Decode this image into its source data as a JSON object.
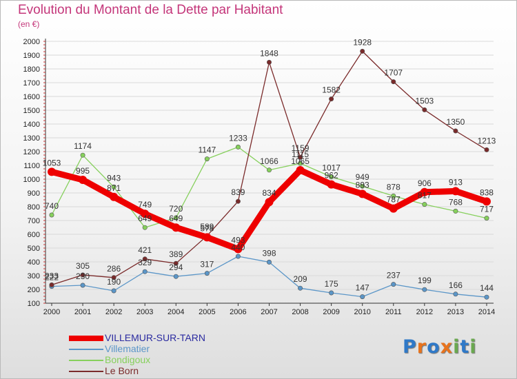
{
  "header": {
    "title": "Evolution du Montant de la Dette par Habitant",
    "subtitle": "(en €)"
  },
  "colors": {
    "title": "#c4367a",
    "axis": "#333333",
    "grid": "#d9d9d9"
  },
  "logo": {
    "text": "Proxiti",
    "letters": [
      {
        "ch": "P",
        "color": "#2f79c8"
      },
      {
        "ch": "r",
        "color": "#e8731d"
      },
      {
        "ch": "o",
        "color": "#2f79c8"
      },
      {
        "ch": "x",
        "color": "#e8731d"
      },
      {
        "ch": "i",
        "color": "#6aa84f"
      },
      {
        "ch": "t",
        "color": "#2f79c8"
      },
      {
        "ch": "i",
        "color": "#6aa84f"
      }
    ]
  },
  "chart_data": {
    "type": "line",
    "x": [
      "2000",
      "2001",
      "2002",
      "2003",
      "2004",
      "2005",
      "2006",
      "2007",
      "2008",
      "2009",
      "2010",
      "2011",
      "2012",
      "2013",
      "2014"
    ],
    "ylim": [
      100,
      2000
    ],
    "yticks": [
      100,
      200,
      300,
      400,
      500,
      600,
      700,
      800,
      900,
      1000,
      1100,
      1200,
      1300,
      1400,
      1500,
      1600,
      1700,
      1800,
      1900,
      2000
    ],
    "grid": true,
    "legend_placement": "bottom-left",
    "series": [
      {
        "name": "VILLEMUR-SUR-TARN",
        "color": "#ee0000",
        "legend_color": "#2a2aa0",
        "emphasis": true,
        "values": [
          1053,
          995,
          871,
          749,
          649,
          578,
          493,
          834,
          1065,
          962,
          893,
          787,
          906,
          913,
          838
        ],
        "labels": [
          "1053",
          "995",
          "871",
          "749",
          "649",
          "578",
          "493",
          "834",
          "1065",
          "962",
          "893",
          "787",
          "906",
          "913",
          "838"
        ]
      },
      {
        "name": "Villematier",
        "color": "#5b96c8",
        "legend_color": "#5b96c8",
        "values": [
          222,
          230,
          190,
          329,
          294,
          317,
          440,
          398,
          209,
          175,
          147,
          237,
          199,
          166,
          144
        ],
        "labels": [
          "222",
          "230",
          "190",
          "329",
          "294",
          "317",
          "440",
          "398",
          "209",
          "175",
          "147",
          "237",
          "199",
          "166",
          "144"
        ]
      },
      {
        "name": "Bondigoux",
        "color": "#86d05c",
        "legend_color": "#86d05c",
        "values": [
          740,
          1174,
          943,
          649,
          720,
          1147,
          1233,
          1066,
          1115,
          1017,
          949,
          878,
          817,
          768,
          717
        ],
        "labels": [
          "740",
          "1174",
          "943",
          "649",
          "720",
          "1147",
          "1233",
          "1066",
          "1115",
          "1017",
          "949",
          "878",
          "817",
          "768",
          "717"
        ]
      },
      {
        "name": "Le Born",
        "color": "#7a2a2a",
        "legend_color": "#7a2a2a",
        "values": [
          233,
          305,
          286,
          421,
          389,
          589,
          839,
          1848,
          1159,
          1582,
          1928,
          1707,
          1503,
          1350,
          1213
        ],
        "labels": [
          "233",
          "305",
          "286",
          "421",
          "389",
          "589",
          "839",
          "1848",
          "1159",
          "1582",
          "1928",
          "1707",
          "1503",
          "1350",
          "1213"
        ]
      }
    ]
  }
}
